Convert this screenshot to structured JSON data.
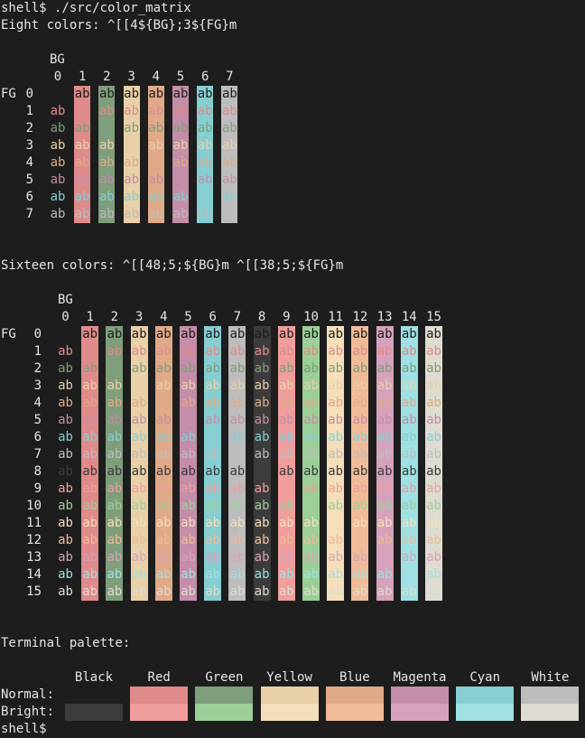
{
  "prompt_line": "shell$ ./src/color_matrix",
  "eight_header": "Eight colors: ^[[4${BG};3${FG}m",
  "sixteen_header": "Sixteen colors: ^[[48;5;${BG}m ^[[38;5;${FG}m",
  "bg_label": "BG",
  "fg_label": "FG",
  "cell_text": "ab",
  "eight_cols": [
    "0",
    "1",
    "2",
    "3",
    "4",
    "5",
    "6",
    "7"
  ],
  "eight_rows": [
    "0",
    "1",
    "2",
    "3",
    "4",
    "5",
    "6",
    "7"
  ],
  "sixteen_cols": [
    "0",
    "1",
    "2",
    "3",
    "4",
    "5",
    "6",
    "7",
    "8",
    "9",
    "10",
    "11",
    "12",
    "13",
    "14",
    "15"
  ],
  "sixteen_rows": [
    "0",
    "1",
    "2",
    "3",
    "4",
    "5",
    "6",
    "7",
    "8",
    "9",
    "10",
    "11",
    "12",
    "13",
    "14",
    "15"
  ],
  "palette_title": "Terminal palette:",
  "palette_names": [
    "Black",
    "Red",
    "Green",
    "Yellow",
    "Blue",
    "Magenta",
    "Cyan",
    "White"
  ],
  "normal_label": "Normal:",
  "bright_label": "Bright:",
  "final_prompt": "shell$",
  "colors": {
    "background": "#1d1d1d",
    "foreground": "#e6e6e6",
    "normal": [
      "#1d1d1d",
      "#df8b8b",
      "#7f9e7c",
      "#e8d0a8",
      "#e0aa88",
      "#c48da8",
      "#86ced2",
      "#bdbdbd"
    ],
    "bright": [
      "#3c3c3c",
      "#f09d9d",
      "#9ccf98",
      "#f5dfbb",
      "#f0bb99",
      "#d6a2bb",
      "#9ee0e3",
      "#dedcd0"
    ]
  }
}
